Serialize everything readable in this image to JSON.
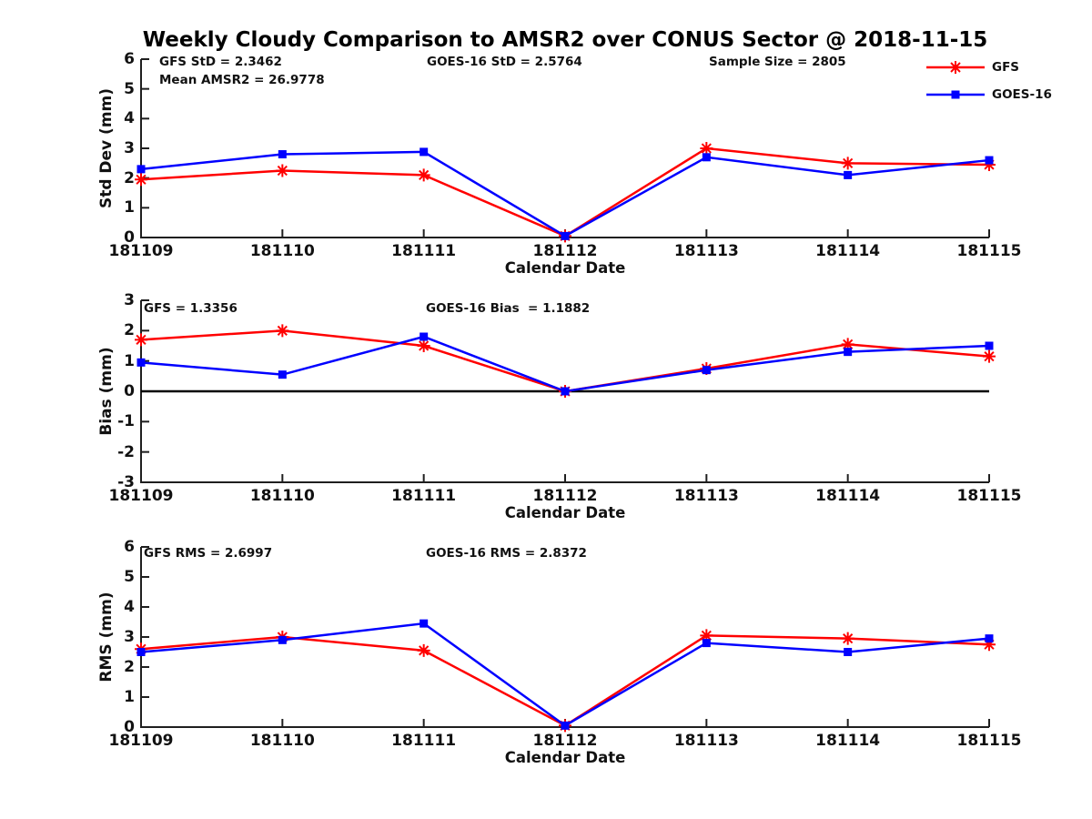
{
  "title": "Weekly Cloudy Comparison to AMSR2 over CONUS Sector @ 2018-11-15",
  "colors": {
    "gfs": "#ff0000",
    "goes16": "#0000ff",
    "axis": "#1f1f1f",
    "zero_line": "#000000"
  },
  "legend": {
    "items": [
      {
        "label": "GFS",
        "color": "#ff0000",
        "marker": "asterisk"
      },
      {
        "label": "GOES-16",
        "color": "#0000ff",
        "marker": "square"
      }
    ]
  },
  "chart_data": [
    {
      "type": "line",
      "panel": "std-dev",
      "ylabel": "Std Dev (mm)",
      "xlabel": "Calendar Date",
      "ylim": [
        0,
        6
      ],
      "yticks": [
        0,
        1,
        2,
        3,
        4,
        5,
        6
      ],
      "grid": false,
      "legend_position": "top-right",
      "categories": [
        "181109",
        "181110",
        "181111",
        "181112",
        "181113",
        "181114",
        "181115"
      ],
      "series": [
        {
          "name": "GFS",
          "color": "#ff0000",
          "marker": "asterisk",
          "values": [
            1.95,
            2.25,
            2.1,
            0.05,
            3.0,
            2.5,
            2.45
          ]
        },
        {
          "name": "GOES-16",
          "color": "#0000ff",
          "marker": "square",
          "values": [
            2.3,
            2.8,
            2.88,
            0.05,
            2.7,
            2.1,
            2.6
          ]
        }
      ],
      "annotations": [
        {
          "text": "GFS StD = 2.3462"
        },
        {
          "text": "Mean AMSR2 = 26.9778"
        },
        {
          "text": "GOES-16 StD = 2.5764"
        },
        {
          "text": "Sample Size = 2805"
        }
      ]
    },
    {
      "type": "line",
      "panel": "bias",
      "ylabel": "Bias (mm)",
      "xlabel": "Calendar Date",
      "ylim": [
        -3,
        3
      ],
      "yticks": [
        -3,
        -2,
        -1,
        0,
        1,
        2,
        3
      ],
      "zero_line": true,
      "grid": false,
      "categories": [
        "181109",
        "181110",
        "181111",
        "181112",
        "181113",
        "181114",
        "181115"
      ],
      "series": [
        {
          "name": "GFS",
          "color": "#ff0000",
          "marker": "asterisk",
          "values": [
            1.7,
            2.0,
            1.5,
            0.0,
            0.75,
            1.55,
            1.15
          ]
        },
        {
          "name": "GOES-16",
          "color": "#0000ff",
          "marker": "square",
          "values": [
            0.95,
            0.55,
            1.8,
            0.0,
            0.7,
            1.3,
            1.5
          ]
        }
      ],
      "annotations": [
        {
          "text": "GFS = 1.3356"
        },
        {
          "text": "GOES-16 Bias  = 1.1882"
        }
      ]
    },
    {
      "type": "line",
      "panel": "rms",
      "ylabel": "RMS (mm)",
      "xlabel": "Calendar Date",
      "ylim": [
        0,
        6
      ],
      "yticks": [
        0,
        1,
        2,
        3,
        4,
        5,
        6
      ],
      "grid": false,
      "categories": [
        "181109",
        "181110",
        "181111",
        "181112",
        "181113",
        "181114",
        "181115"
      ],
      "series": [
        {
          "name": "GFS",
          "color": "#ff0000",
          "marker": "asterisk",
          "values": [
            2.6,
            3.0,
            2.55,
            0.05,
            3.05,
            2.95,
            2.75
          ]
        },
        {
          "name": "GOES-16",
          "color": "#0000ff",
          "marker": "square",
          "values": [
            2.5,
            2.9,
            3.45,
            0.05,
            2.8,
            2.5,
            2.95
          ]
        }
      ],
      "annotations": [
        {
          "text": "GFS RMS = 2.6997"
        },
        {
          "text": "GOES-16 RMS = 2.8372"
        }
      ]
    }
  ]
}
